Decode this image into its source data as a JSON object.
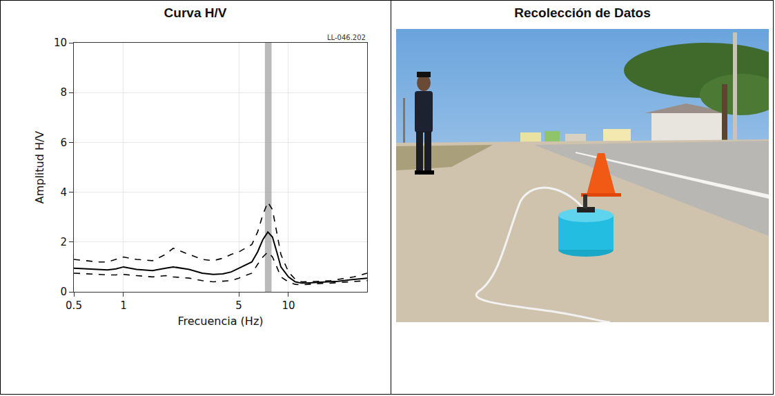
{
  "panels": {
    "left_title": "Curva H/V",
    "right_title": "Recolección de Datos"
  },
  "chart_data": {
    "type": "line",
    "annotation": "LL-046.202",
    "x_label": "Frecuencia (Hz)",
    "y_label": "Amplitud H/V",
    "log": "x",
    "grid": true,
    "xlim": [
      0.5,
      30
    ],
    "xticks": [
      0.5,
      1,
      5,
      10
    ],
    "ylim": [
      0,
      10
    ],
    "yticks": [
      0,
      2,
      4,
      6,
      8,
      10
    ],
    "highlight_band": [
      7.2,
      7.9
    ],
    "x": [
      0.5,
      0.6,
      0.7,
      0.8,
      0.9,
      1,
      1.2,
      1.5,
      1.8,
      2,
      2.5,
      3,
      3.5,
      4,
      4.5,
      5,
      6,
      6.5,
      7,
      7.5,
      8,
      8.5,
      9,
      10,
      11,
      12,
      13,
      15,
      18,
      20,
      25,
      30
    ],
    "series": [
      {
        "color": "#000000",
        "line_style": "solid",
        "values": [
          0.95,
          0.92,
          0.9,
          0.88,
          0.92,
          1.0,
          0.9,
          0.85,
          0.95,
          1.0,
          0.9,
          0.75,
          0.7,
          0.72,
          0.8,
          0.95,
          1.2,
          1.6,
          2.1,
          2.4,
          2.2,
          1.6,
          1.0,
          0.6,
          0.4,
          0.35,
          0.35,
          0.38,
          0.4,
          0.42,
          0.5,
          0.55
        ]
      },
      {
        "color": "#000000",
        "line_style": "dash",
        "values": [
          1.3,
          1.25,
          1.2,
          1.2,
          1.3,
          1.4,
          1.3,
          1.25,
          1.5,
          1.75,
          1.5,
          1.3,
          1.25,
          1.35,
          1.5,
          1.6,
          1.9,
          2.4,
          3.1,
          3.6,
          3.3,
          2.4,
          1.5,
          0.8,
          0.5,
          0.4,
          0.4,
          0.42,
          0.45,
          0.5,
          0.6,
          0.75
        ]
      },
      {
        "color": "#000000",
        "line_style": "dash",
        "values": [
          0.75,
          0.72,
          0.7,
          0.68,
          0.68,
          0.7,
          0.65,
          0.6,
          0.65,
          0.6,
          0.55,
          0.45,
          0.4,
          0.42,
          0.45,
          0.55,
          0.75,
          1.1,
          1.4,
          1.6,
          1.4,
          1.0,
          0.6,
          0.4,
          0.3,
          0.28,
          0.3,
          0.33,
          0.35,
          0.37,
          0.42,
          0.45
        ]
      }
    ]
  }
}
